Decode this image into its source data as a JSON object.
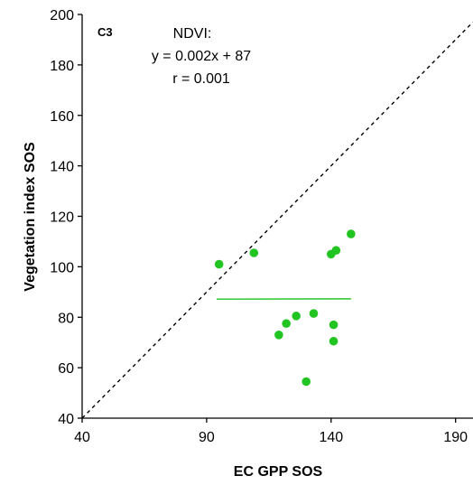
{
  "chart_data": {
    "type": "scatter",
    "panel_label": "C3",
    "xlabel": "EC GPP SOS",
    "ylabel": "Vegetation index SOS",
    "xlim": [
      40,
      197
    ],
    "ylim": [
      40,
      200
    ],
    "x_ticks": [
      "40",
      "90",
      "140",
      "190"
    ],
    "y_ticks": [
      "40",
      "60",
      "80",
      "100",
      "120",
      "140",
      "160",
      "180",
      "200"
    ],
    "grid": false,
    "annotation": [
      "NDVI:",
      "y = 0.002x + 87",
      "r = 0.001"
    ],
    "colors": {
      "points": "#22c422",
      "fit": "#22c422",
      "reference": "#000000"
    },
    "points": [
      {
        "x": 95,
        "y": 101
      },
      {
        "x": 109,
        "y": 105.5
      },
      {
        "x": 119,
        "y": 73
      },
      {
        "x": 122,
        "y": 77.5
      },
      {
        "x": 126,
        "y": 80.5
      },
      {
        "x": 130,
        "y": 54.5
      },
      {
        "x": 133,
        "y": 81.5
      },
      {
        "x": 140,
        "y": 105
      },
      {
        "x": 141,
        "y": 77
      },
      {
        "x": 141,
        "y": 70.5
      },
      {
        "x": 142,
        "y": 106.5
      },
      {
        "x": 148,
        "y": 113
      }
    ],
    "fit_line": {
      "x": [
        94,
        148
      ],
      "slope": 0.002,
      "intercept": 87
    },
    "reference_line": {
      "x": [
        40,
        197
      ],
      "y": [
        40,
        197
      ],
      "style": "dashed"
    }
  }
}
